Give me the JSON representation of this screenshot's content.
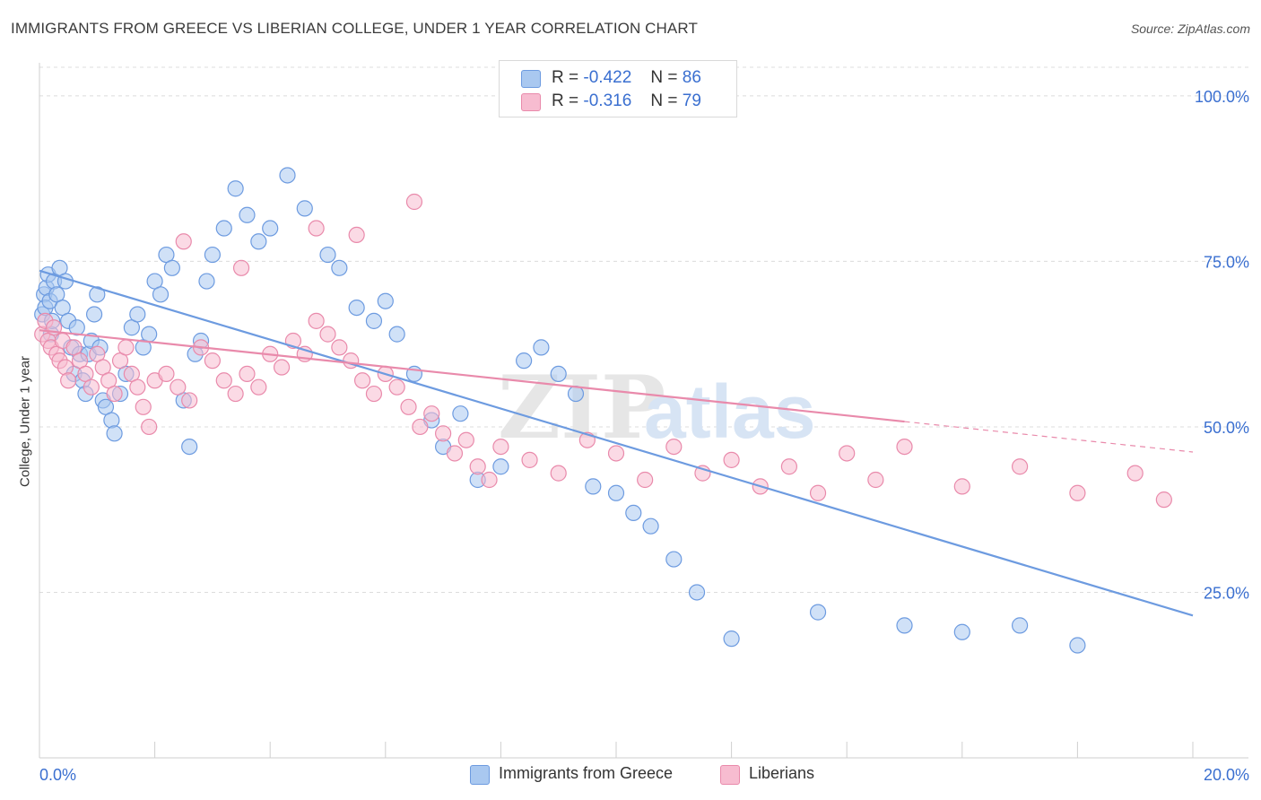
{
  "title": "IMMIGRANTS FROM GREECE VS LIBERIAN COLLEGE, UNDER 1 YEAR CORRELATION CHART",
  "source": "Source: ZipAtlas.com",
  "watermark": {
    "zip": "ZIP",
    "atlas": "atlas"
  },
  "legend": {
    "rows": [
      {
        "r_label": "R =",
        "r_value": "-0.422",
        "n_label": "N =",
        "n_value": "86",
        "color": "#a9c8f0",
        "border": "#6d9be0"
      },
      {
        "r_label": "R =",
        "r_value": "-0.316",
        "n_label": "N =",
        "n_value": "79",
        "color": "#f7bcd0",
        "border": "#e98aab"
      }
    ]
  },
  "bottom_legend": [
    "Immigrants from Greece",
    "Liberians"
  ],
  "chart_data": {
    "type": "scatter",
    "title": "IMMIGRANTS FROM GREECE VS LIBERIAN COLLEGE, UNDER 1 YEAR CORRELATION CHART",
    "xlabel": "",
    "ylabel": "College, Under 1 year",
    "xlim": [
      0,
      20
    ],
    "ylim": [
      0,
      105
    ],
    "x_tick_labels": [
      "0.0%",
      "20.0%"
    ],
    "y_tick_labels": [
      "100.0%",
      "75.0%",
      "50.0%",
      "25.0%"
    ],
    "y_ticks": [
      100,
      75,
      50,
      25
    ],
    "grid": true,
    "series": [
      {
        "name": "Immigrants from Greece",
        "color": "#6d9be0",
        "fill": "#a9c8f0",
        "trend": {
          "x0": 0,
          "y0": 73.6,
          "x1": 20,
          "y1": 21.5,
          "dashed_to": 20
        },
        "points": [
          [
            0.05,
            67
          ],
          [
            0.08,
            70
          ],
          [
            0.1,
            68
          ],
          [
            0.12,
            71
          ],
          [
            0.15,
            73
          ],
          [
            0.18,
            69
          ],
          [
            0.2,
            64
          ],
          [
            0.22,
            66
          ],
          [
            0.25,
            72
          ],
          [
            0.3,
            70
          ],
          [
            0.35,
            74
          ],
          [
            0.4,
            68
          ],
          [
            0.45,
            72
          ],
          [
            0.5,
            66
          ],
          [
            0.55,
            62
          ],
          [
            0.6,
            58
          ],
          [
            0.65,
            65
          ],
          [
            0.7,
            61
          ],
          [
            0.75,
            57
          ],
          [
            0.8,
            55
          ],
          [
            0.85,
            61
          ],
          [
            0.9,
            63
          ],
          [
            0.95,
            67
          ],
          [
            1.0,
            70
          ],
          [
            1.05,
            62
          ],
          [
            1.1,
            54
          ],
          [
            1.15,
            53
          ],
          [
            1.25,
            51
          ],
          [
            1.3,
            49
          ],
          [
            1.4,
            55
          ],
          [
            1.5,
            58
          ],
          [
            1.6,
            65
          ],
          [
            1.7,
            67
          ],
          [
            1.8,
            62
          ],
          [
            1.9,
            64
          ],
          [
            2.0,
            72
          ],
          [
            2.1,
            70
          ],
          [
            2.2,
            76
          ],
          [
            2.3,
            74
          ],
          [
            2.5,
            54
          ],
          [
            2.6,
            47
          ],
          [
            2.7,
            61
          ],
          [
            2.8,
            63
          ],
          [
            2.9,
            72
          ],
          [
            3.0,
            76
          ],
          [
            3.2,
            80
          ],
          [
            3.4,
            86
          ],
          [
            3.6,
            82
          ],
          [
            3.8,
            78
          ],
          [
            4.0,
            80
          ],
          [
            4.3,
            88
          ],
          [
            4.6,
            83
          ],
          [
            5.0,
            76
          ],
          [
            5.2,
            74
          ],
          [
            5.5,
            68
          ],
          [
            5.8,
            66
          ],
          [
            6.0,
            69
          ],
          [
            6.2,
            64
          ],
          [
            6.5,
            58
          ],
          [
            6.8,
            51
          ],
          [
            7.0,
            47
          ],
          [
            7.3,
            52
          ],
          [
            7.6,
            42
          ],
          [
            8.0,
            44
          ],
          [
            8.4,
            60
          ],
          [
            8.7,
            62
          ],
          [
            9.0,
            58
          ],
          [
            9.3,
            55
          ],
          [
            9.6,
            41
          ],
          [
            10.0,
            40
          ],
          [
            10.3,
            37
          ],
          [
            10.6,
            35
          ],
          [
            11.0,
            30
          ],
          [
            11.4,
            25
          ],
          [
            12.0,
            18
          ],
          [
            13.5,
            22
          ],
          [
            15.0,
            20
          ],
          [
            16.0,
            19
          ],
          [
            17.0,
            20
          ],
          [
            18.0,
            17
          ]
        ]
      },
      {
        "name": "Liberians",
        "color": "#e98aab",
        "fill": "#f7bcd0",
        "trend": {
          "x0": 0,
          "y0": 64.6,
          "x1": 15,
          "y1": 50.8,
          "dashed_to": 20
        },
        "points": [
          [
            0.05,
            64
          ],
          [
            0.1,
            66
          ],
          [
            0.15,
            63
          ],
          [
            0.2,
            62
          ],
          [
            0.25,
            65
          ],
          [
            0.3,
            61
          ],
          [
            0.35,
            60
          ],
          [
            0.4,
            63
          ],
          [
            0.45,
            59
          ],
          [
            0.5,
            57
          ],
          [
            0.6,
            62
          ],
          [
            0.7,
            60
          ],
          [
            0.8,
            58
          ],
          [
            0.9,
            56
          ],
          [
            1.0,
            61
          ],
          [
            1.1,
            59
          ],
          [
            1.2,
            57
          ],
          [
            1.3,
            55
          ],
          [
            1.4,
            60
          ],
          [
            1.5,
            62
          ],
          [
            1.6,
            58
          ],
          [
            1.7,
            56
          ],
          [
            1.8,
            53
          ],
          [
            1.9,
            50
          ],
          [
            2.0,
            57
          ],
          [
            2.2,
            58
          ],
          [
            2.4,
            56
          ],
          [
            2.6,
            54
          ],
          [
            2.8,
            62
          ],
          [
            3.0,
            60
          ],
          [
            3.2,
            57
          ],
          [
            3.4,
            55
          ],
          [
            3.6,
            58
          ],
          [
            3.8,
            56
          ],
          [
            4.0,
            61
          ],
          [
            4.2,
            59
          ],
          [
            4.4,
            63
          ],
          [
            4.6,
            61
          ],
          [
            4.8,
            66
          ],
          [
            5.0,
            64
          ],
          [
            5.2,
            62
          ],
          [
            5.4,
            60
          ],
          [
            5.6,
            57
          ],
          [
            5.8,
            55
          ],
          [
            6.0,
            58
          ],
          [
            6.2,
            56
          ],
          [
            6.4,
            53
          ],
          [
            6.6,
            50
          ],
          [
            6.8,
            52
          ],
          [
            7.0,
            49
          ],
          [
            7.2,
            46
          ],
          [
            7.4,
            48
          ],
          [
            7.6,
            44
          ],
          [
            7.8,
            42
          ],
          [
            8.0,
            47
          ],
          [
            8.5,
            45
          ],
          [
            9.0,
            43
          ],
          [
            9.5,
            48
          ],
          [
            10.0,
            46
          ],
          [
            10.5,
            42
          ],
          [
            11.0,
            47
          ],
          [
            11.5,
            43
          ],
          [
            12.0,
            45
          ],
          [
            12.5,
            41
          ],
          [
            13.0,
            44
          ],
          [
            13.5,
            40
          ],
          [
            14.0,
            46
          ],
          [
            14.5,
            42
          ],
          [
            15.0,
            47
          ],
          [
            16.0,
            41
          ],
          [
            17.0,
            44
          ],
          [
            18.0,
            40
          ],
          [
            19.0,
            43
          ],
          [
            19.5,
            39
          ],
          [
            3.5,
            74
          ],
          [
            2.5,
            78
          ],
          [
            4.8,
            80
          ],
          [
            6.5,
            84
          ],
          [
            5.5,
            79
          ]
        ]
      }
    ]
  }
}
